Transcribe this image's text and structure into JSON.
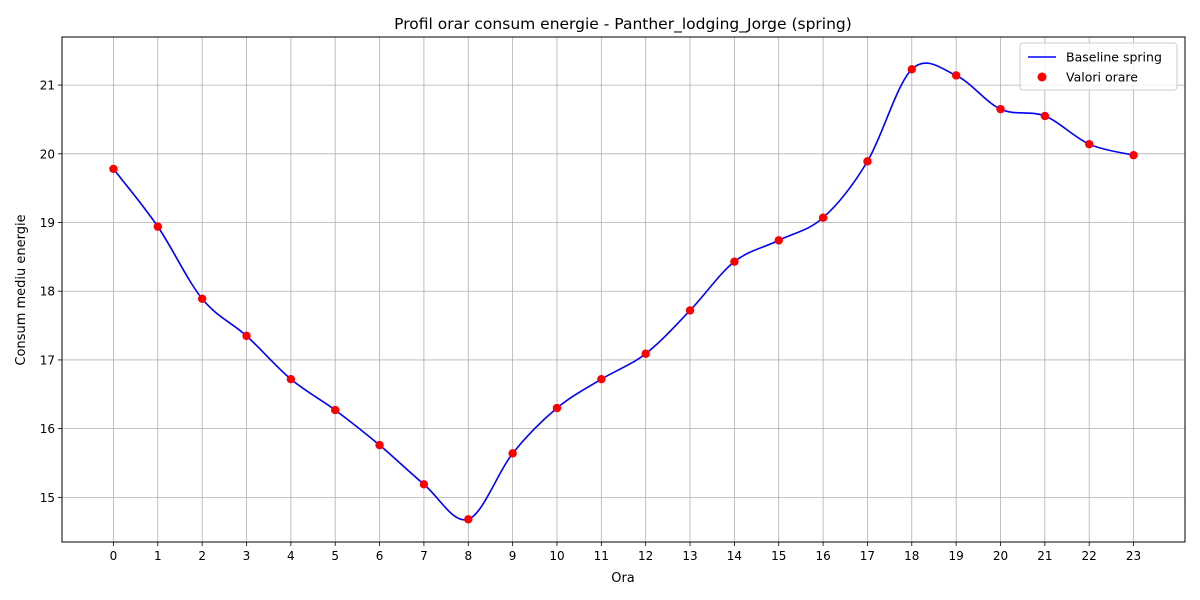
{
  "chart_data": {
    "type": "line",
    "title": "Profil orar consum energie - Panther_lodging_Jorge (spring)",
    "xlabel": "Ora",
    "ylabel": "Consum mediu energie",
    "x": [
      0,
      1,
      2,
      3,
      4,
      5,
      6,
      7,
      8,
      9,
      10,
      11,
      12,
      13,
      14,
      15,
      16,
      17,
      18,
      19,
      20,
      21,
      22,
      23
    ],
    "xlim": [
      -1.16,
      24.16
    ],
    "ylim": [
      14.35,
      21.7
    ],
    "xticks": [
      "0",
      "1",
      "2",
      "3",
      "4",
      "5",
      "6",
      "7",
      "8",
      "9",
      "10",
      "11",
      "12",
      "13",
      "14",
      "15",
      "16",
      "17",
      "18",
      "19",
      "20",
      "21",
      "22",
      "23"
    ],
    "yticks": [
      "15",
      "16",
      "17",
      "18",
      "19",
      "20",
      "21"
    ],
    "grid": true,
    "legend_position": "top-right",
    "series": [
      {
        "name": "Baseline spring",
        "kind": "line",
        "color": "#0000ff",
        "values": [
          19.78,
          18.94,
          17.89,
          17.35,
          16.72,
          16.27,
          15.76,
          15.19,
          14.68,
          15.64,
          16.3,
          16.72,
          17.09,
          17.72,
          18.43,
          18.74,
          19.07,
          19.89,
          21.23,
          21.14,
          20.65,
          20.55,
          20.14,
          19.98
        ]
      },
      {
        "name": "Valori orare",
        "kind": "scatter",
        "color": "#ff0000",
        "values": [
          19.78,
          18.94,
          17.89,
          17.35,
          16.72,
          16.27,
          15.76,
          15.19,
          14.68,
          15.64,
          16.3,
          16.72,
          17.09,
          17.72,
          18.43,
          18.74,
          19.07,
          19.89,
          21.23,
          21.14,
          20.65,
          20.55,
          20.14,
          19.98
        ]
      }
    ]
  }
}
